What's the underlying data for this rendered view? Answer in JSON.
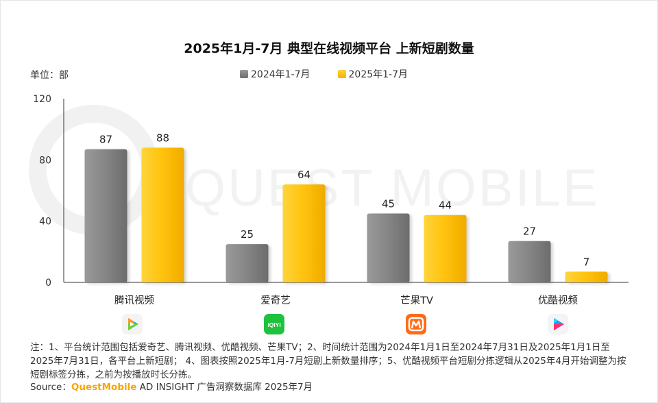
{
  "title": "2025年1月-7月 典型在线视频平台 上新短剧数量",
  "unit_label": "单位：部",
  "watermark": "QUEST MOBILE",
  "colors": {
    "series_2024": "#808080",
    "series_2025": "#ffc000",
    "axis": "#333333",
    "brand": "#f5a700"
  },
  "logos": {
    "tencent": "tencent-video-logo",
    "iqiyi": {
      "name": "iqiyi-logo",
      "text": "iQIYI"
    },
    "mango": "mango-tv-logo",
    "youku": "youku-logo"
  },
  "chart_data": {
    "type": "bar",
    "title": "2025年1月-7月 典型在线视频平台 上新短剧数量",
    "ylabel": "单位：部",
    "xlabel": "",
    "categories": [
      "腾讯视频",
      "爱奇艺",
      "芒果TV",
      "优酷视频"
    ],
    "series": [
      {
        "name": "2024年1-7月",
        "values": [
          87,
          25,
          45,
          27
        ]
      },
      {
        "name": "2025年1-7月",
        "values": [
          88,
          64,
          44,
          7
        ]
      }
    ],
    "ylim": [
      0,
      120
    ],
    "yticks": [
      0,
      40,
      80,
      120
    ],
    "grid": false,
    "legend": "top"
  },
  "footnote": "注：1、平台统计范围包括爱奇艺、腾讯视频、优酷视频、芒果TV；2、时间统计范围为2024年1月1日至2024年7月31日及2025年1月1日至2025年7月31日，各平台上新短剧；  4、图表按照2025年1月-7月短剧上新数量排序；5、优酷视频平台短剧分拣逻辑从2025年4月开始调整为按短剧标签分拣，之前为按播放时长分拣。",
  "source": {
    "label": "Source：",
    "brand": "QuestMobile",
    "text": " AD INSIGHT 广告洞察数据库 2025年7月"
  }
}
